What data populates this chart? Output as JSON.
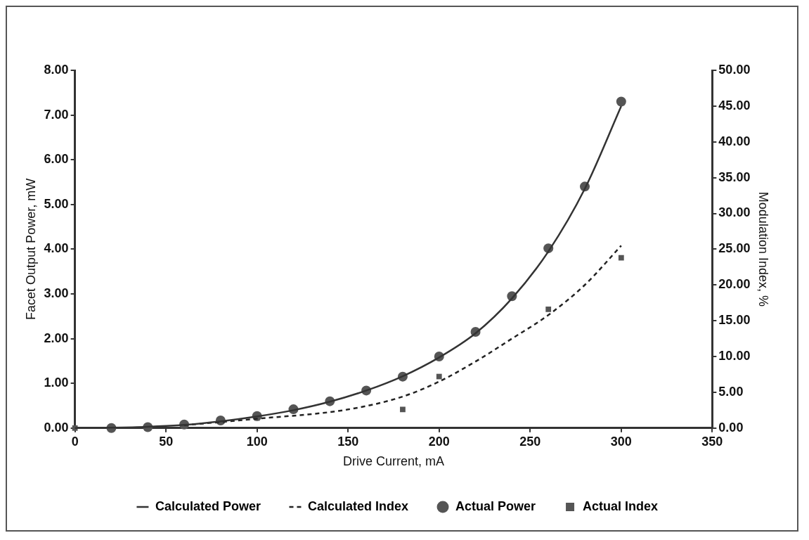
{
  "chart_data": {
    "type": "line",
    "xlabel": "Drive Current, mA",
    "ylabel": "Facet Output Power, mW",
    "y2label": "Modulation Index, %",
    "xlim": [
      0,
      350
    ],
    "xticks": [
      0,
      50,
      100,
      150,
      200,
      250,
      300,
      350
    ],
    "ylim": [
      0,
      8
    ],
    "yticks": [
      {
        "value": 0,
        "label": "0.00"
      },
      {
        "value": 1,
        "label": "1.00"
      },
      {
        "value": 2,
        "label": "2.00"
      },
      {
        "value": 3,
        "label": "3.00"
      },
      {
        "value": 4,
        "label": "4.00"
      },
      {
        "value": 5,
        "label": "5.00"
      },
      {
        "value": 6,
        "label": "6.00"
      },
      {
        "value": 7,
        "label": "7.00"
      },
      {
        "value": 8,
        "label": "8.00"
      }
    ],
    "y2lim": [
      0,
      50
    ],
    "y2ticks": [
      {
        "value": 0,
        "label": "0.00"
      },
      {
        "value": 5,
        "label": "5.00"
      },
      {
        "value": 10,
        "label": "10.00"
      },
      {
        "value": 15,
        "label": "15.00"
      },
      {
        "value": 20,
        "label": "20.00"
      },
      {
        "value": 25,
        "label": "25.00"
      },
      {
        "value": 30,
        "label": "30.00"
      },
      {
        "value": 35,
        "label": "35.00"
      },
      {
        "value": 40,
        "label": "40.00"
      },
      {
        "value": 45,
        "label": "45.00"
      },
      {
        "value": 50,
        "label": "50.00"
      }
    ],
    "grid": false,
    "legend": "bottom",
    "series": [
      {
        "name": "Calculated Power",
        "color": "#333333",
        "marker": "none",
        "line_style": "solid",
        "x": [
          0,
          20,
          40,
          60,
          80,
          100,
          120,
          140,
          160,
          180,
          200,
          220,
          240,
          260,
          280,
          300
        ],
        "values": [
          0,
          0.01,
          0.03,
          0.07,
          0.15,
          0.26,
          0.4,
          0.59,
          0.84,
          1.16,
          1.58,
          2.12,
          2.9,
          3.95,
          5.35,
          7.2
        ]
      },
      {
        "name": "Calculated Index",
        "axis": "y2",
        "color": "#222222",
        "marker": "none",
        "line_style": "dashed",
        "x": [
          60,
          100,
          150,
          180,
          200,
          220,
          240,
          260,
          280,
          300
        ],
        "values": [
          0.4,
          1.3,
          2.6,
          4.4,
          6.5,
          9.3,
          12.5,
          15.8,
          20,
          25.5
        ]
      },
      {
        "name": "Actual Power",
        "type": "scatter",
        "color": "#555555",
        "marker": "circle",
        "x": [
          20,
          40,
          60,
          80,
          100,
          120,
          140,
          160,
          180,
          200,
          220,
          240,
          260,
          280,
          300
        ],
        "values": [
          0,
          0.02,
          0.08,
          0.17,
          0.27,
          0.42,
          0.6,
          0.84,
          1.15,
          1.6,
          2.15,
          2.95,
          4.02,
          5.4,
          7.3
        ]
      },
      {
        "name": "Actual Index",
        "type": "scatter",
        "axis": "y2",
        "color": "#555555",
        "marker": "square",
        "x": [
          0,
          100,
          180,
          200,
          260,
          300
        ],
        "values": [
          0,
          1.4,
          2.6,
          7.2,
          16.6,
          23.8
        ]
      }
    ]
  }
}
